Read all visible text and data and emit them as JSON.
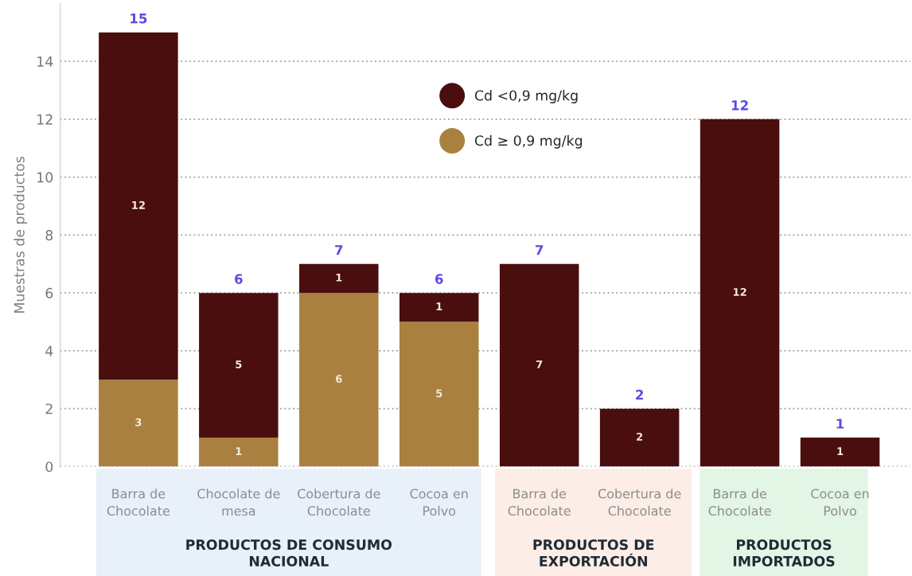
{
  "chart_data": {
    "type": "bar",
    "stacked": true,
    "categories": [
      "Barra de\nChocolate",
      "Chocolate de\nmesa",
      "Cobertura de\nChocolate",
      "Cocoa en\nPolvo",
      "Barra de\nChocolate",
      "Cobertura de\nChocolate",
      "Barra de\nChocolate",
      "Cocoa en\nPolvo"
    ],
    "series": [
      {
        "name": "Cd ≥ 0,9 mg/kg",
        "color": "#a9803f",
        "values": [
          3,
          1,
          6,
          5,
          null,
          null,
          null,
          null
        ]
      },
      {
        "name": "Cd <0,9 mg/kg",
        "color": "#4a0e0e",
        "values": [
          12,
          5,
          1,
          1,
          7,
          2,
          12,
          1
        ]
      }
    ],
    "data_labels": true,
    "totals": [
      "15",
      "6",
      "7",
      "6",
      "7",
      "2",
      "12",
      "1"
    ],
    "ylabel": "Muestras de productos",
    "ylim": [
      0,
      16
    ],
    "yticks": [
      0,
      2,
      4,
      6,
      8,
      10,
      12,
      14
    ],
    "grid": "y",
    "legend": "top",
    "annotations": [
      "PRODUCTOS DE CONSUMO\nNACIONAL",
      "PRODUCTOS DE\nEXPORTACIÓN",
      "PRODUCTOS\nIMPORTADOS"
    ]
  }
}
